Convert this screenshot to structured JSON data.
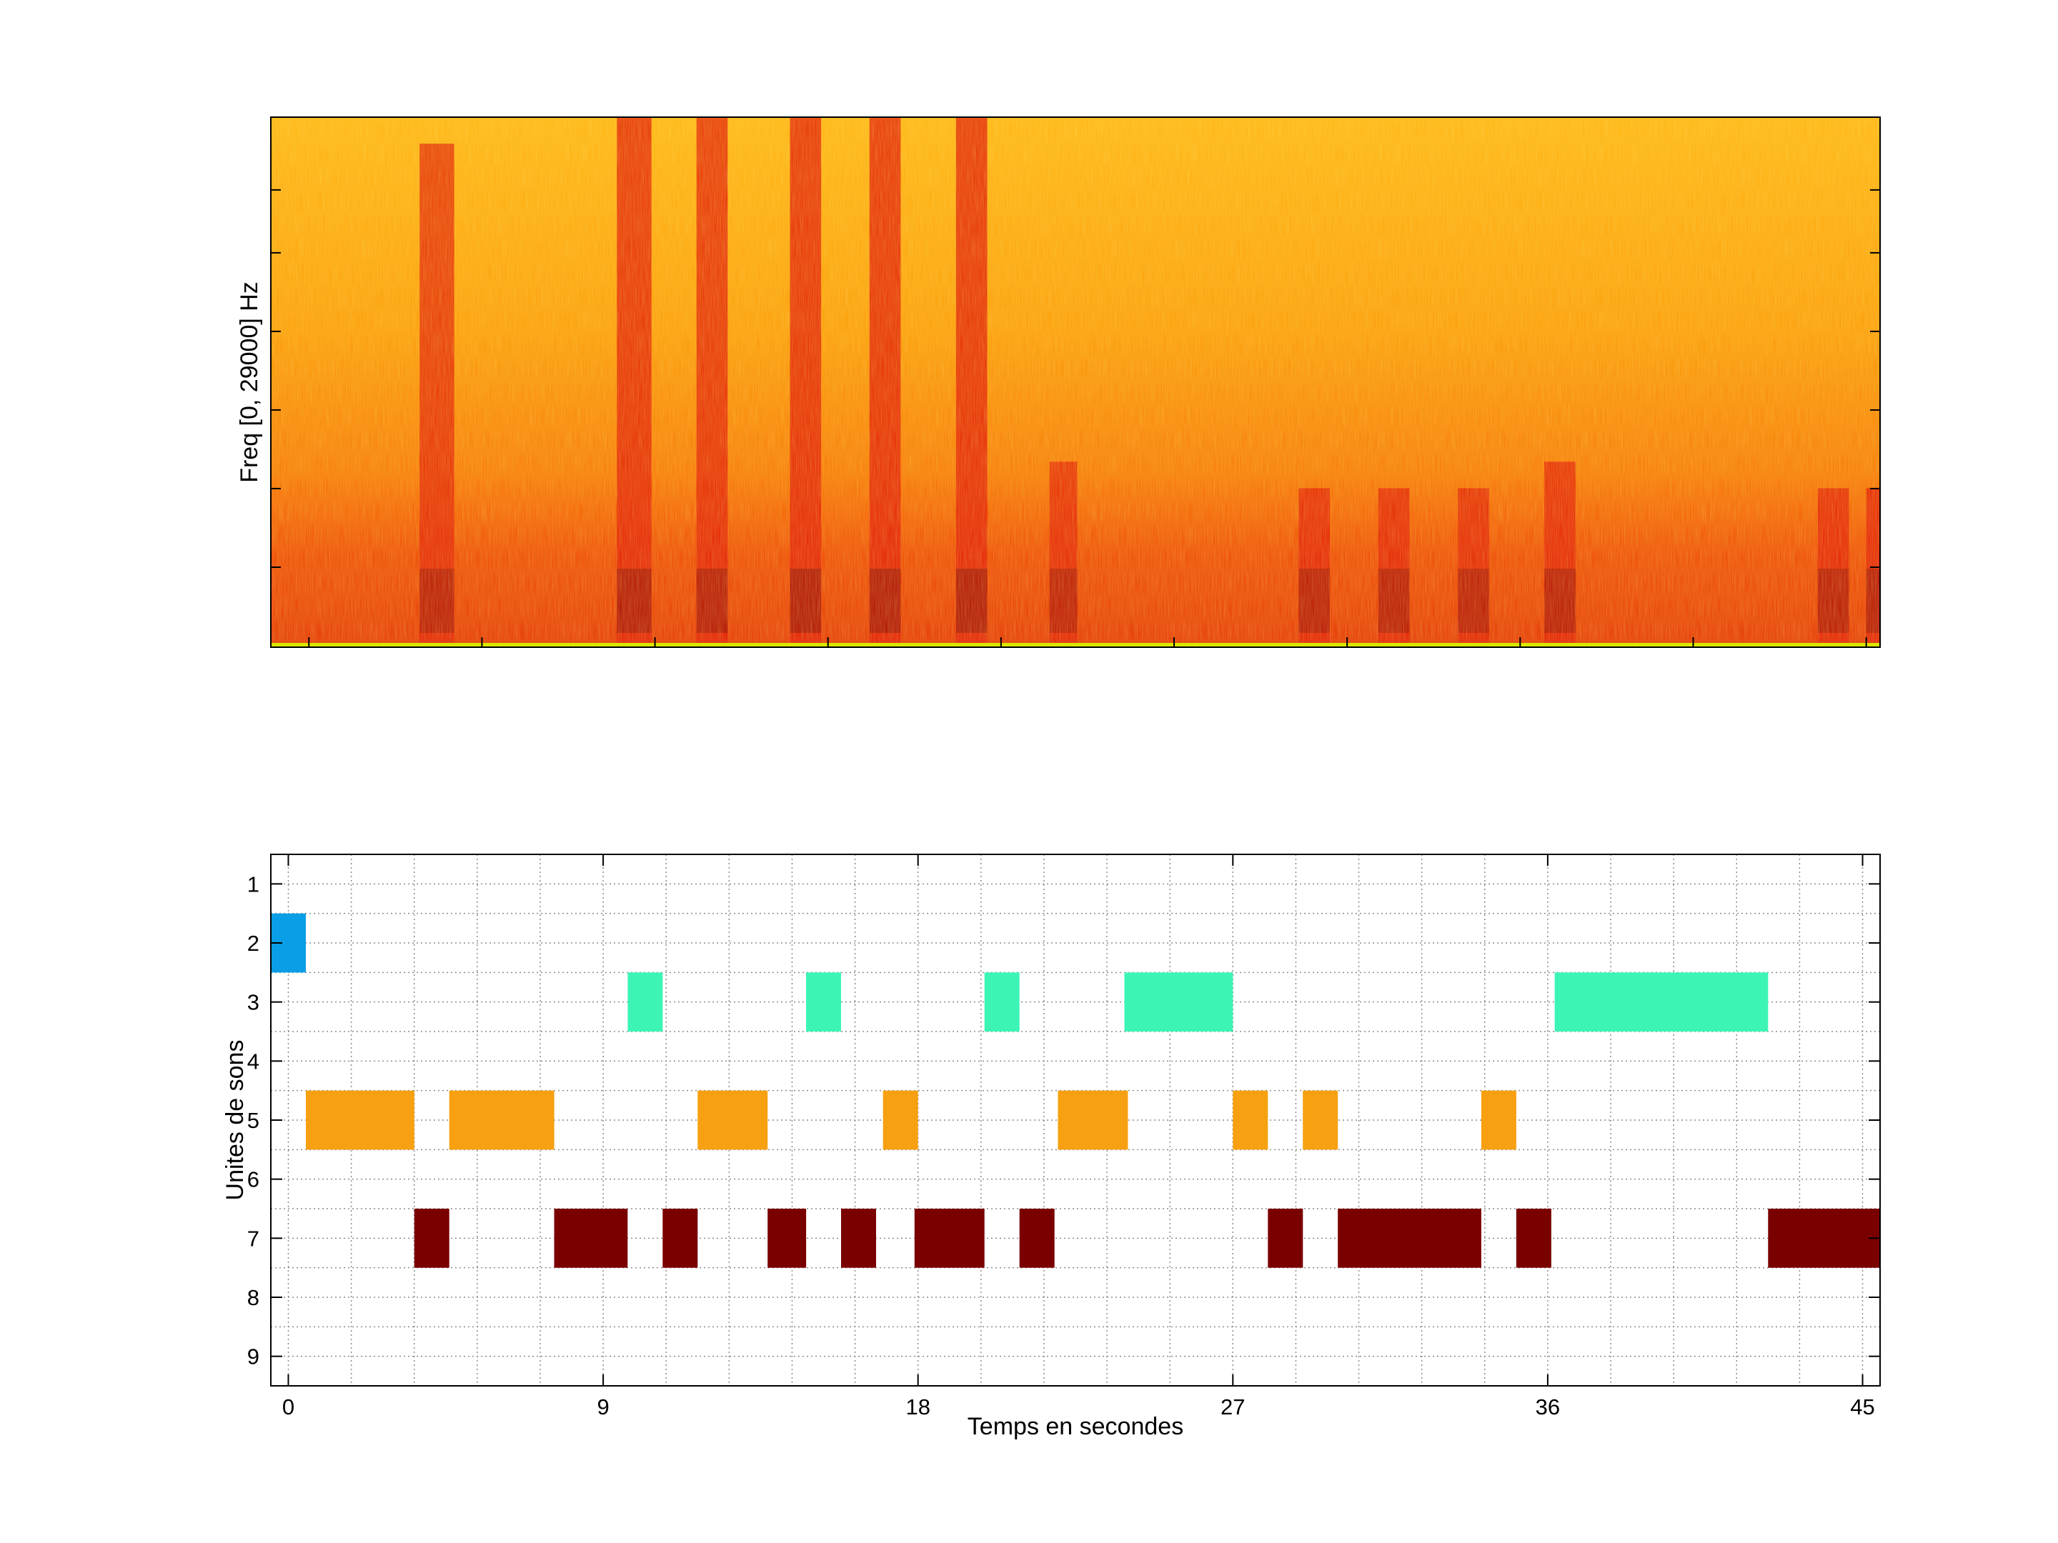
{
  "chart_data": [
    {
      "type": "heatmap",
      "description_kind": "spectrogram",
      "title": "",
      "ylabel": "Freq [0, 29000] Hz",
      "xlim": [
        -1,
        45.5
      ],
      "ylim": [
        0,
        29000
      ],
      "colormap": [
        "#fff200",
        "#ffb000",
        "#ff6a00",
        "#e61c00",
        "#7a0000"
      ],
      "bands": [
        {
          "start": 3.3,
          "end": 4.3,
          "strength": 0.8,
          "top": 0.95
        },
        {
          "start": 9.0,
          "end": 10.0,
          "strength": 0.95,
          "top": 1.0
        },
        {
          "start": 11.3,
          "end": 12.2,
          "strength": 0.9,
          "top": 1.0
        },
        {
          "start": 14.0,
          "end": 14.9,
          "strength": 1.0,
          "top": 1.0
        },
        {
          "start": 16.3,
          "end": 17.2,
          "strength": 1.0,
          "top": 1.0
        },
        {
          "start": 18.8,
          "end": 19.7,
          "strength": 1.0,
          "top": 1.0
        },
        {
          "start": 21.5,
          "end": 22.3,
          "strength": 0.75,
          "top": 0.35
        },
        {
          "start": 28.7,
          "end": 29.6,
          "strength": 0.85,
          "top": 0.3
        },
        {
          "start": 31.0,
          "end": 31.9,
          "strength": 0.85,
          "top": 0.3
        },
        {
          "start": 33.3,
          "end": 34.2,
          "strength": 0.8,
          "top": 0.3
        },
        {
          "start": 35.8,
          "end": 36.7,
          "strength": 0.85,
          "top": 0.35
        },
        {
          "start": 43.7,
          "end": 44.6,
          "strength": 0.85,
          "top": 0.3
        },
        {
          "start": 45.1,
          "end": 45.5,
          "strength": 0.9,
          "top": 0.3
        }
      ]
    },
    {
      "type": "bar",
      "orientation": "horizontal-gantt",
      "title": "",
      "xlabel": "Temps en secondes",
      "ylabel": "Unites de sons",
      "xlim": [
        -0.5,
        45.5
      ],
      "ylim": [
        0.5,
        9.5
      ],
      "xticks": [
        0,
        9,
        18,
        27,
        36,
        45
      ],
      "yticks": [
        1,
        2,
        3,
        4,
        5,
        6,
        7,
        8,
        9
      ],
      "grid": true,
      "series": [
        {
          "name": "unit 2",
          "unit": 2,
          "color": "#0a9ee6",
          "segments": [
            [
              -0.5,
              0.5
            ]
          ]
        },
        {
          "name": "unit 3",
          "unit": 3,
          "color": "#3cf5b4",
          "segments": [
            [
              9.7,
              10.7
            ],
            [
              14.8,
              15.8
            ],
            [
              19.9,
              20.9
            ],
            [
              23.9,
              27.0
            ],
            [
              36.2,
              42.3
            ]
          ]
        },
        {
          "name": "unit 5",
          "unit": 5,
          "color": "#f7a011",
          "segments": [
            [
              0.5,
              3.6
            ],
            [
              4.6,
              7.6
            ],
            [
              11.7,
              13.7
            ],
            [
              17.0,
              18.0
            ],
            [
              22.0,
              24.0
            ],
            [
              27.0,
              28.0
            ],
            [
              29.0,
              30.0
            ],
            [
              34.1,
              35.1
            ]
          ]
        },
        {
          "name": "unit 7",
          "unit": 7,
          "color": "#7a0000",
          "segments": [
            [
              3.6,
              4.6
            ],
            [
              7.6,
              9.7
            ],
            [
              10.7,
              11.7
            ],
            [
              13.7,
              14.8
            ],
            [
              15.8,
              16.8
            ],
            [
              17.9,
              19.9
            ],
            [
              20.9,
              21.9
            ],
            [
              28.0,
              29.0
            ],
            [
              30.0,
              34.1
            ],
            [
              35.1,
              36.1
            ],
            [
              42.3,
              45.5
            ]
          ]
        }
      ]
    }
  ]
}
